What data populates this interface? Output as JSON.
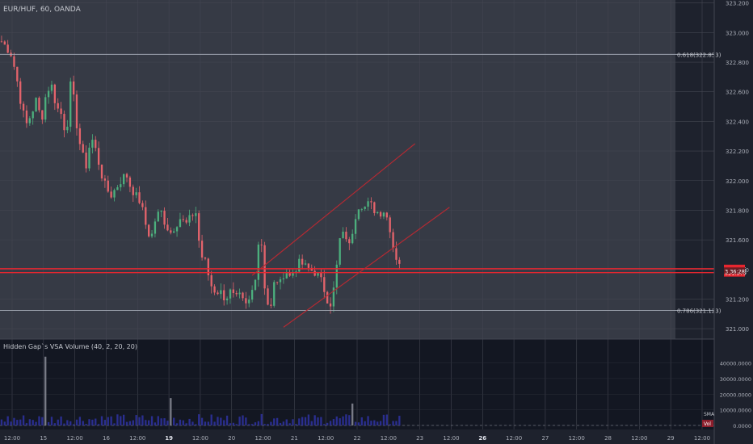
{
  "colors": {
    "main_bg": "#363a45",
    "future_bg": "#1e222d",
    "vol_bg": "#131722",
    "up": "#4caf7d",
    "down": "#e3636b",
    "vol_bar": "#2a2e8f",
    "line_red": "#e8262f",
    "line_gray": "#aab0bb",
    "channel": "#b22a33",
    "text": "#a9adb7"
  },
  "chart_data": {
    "type": "candlestick",
    "title": "EUR/HUF, 60, OANDA",
    "price_axis": {
      "ticks": [
        "323.200",
        "323.000",
        "322.800",
        "322.600",
        "322.400",
        "322.200",
        "322.000",
        "321.800",
        "321.600",
        "321.400",
        "321.200",
        "321.000"
      ],
      "range": [
        320.93,
        323.22
      ]
    },
    "time_axis": {
      "ticks": [
        "12:00",
        "15",
        "12:00",
        "16",
        "12:00",
        "19",
        "12:00",
        "20",
        "12:00",
        "21",
        "12:00",
        "22",
        "12:00",
        "23",
        "12:00",
        "26",
        "12:00",
        "27",
        "12:00",
        "28",
        "12:00",
        "29",
        "12:00"
      ],
      "bold_ticks": [
        "19",
        "26"
      ],
      "data_end_bar": 128,
      "total_bars": 228
    },
    "levels": [
      {
        "label": "0.618(322.853)",
        "value": 322.853,
        "color": "line_gray"
      },
      {
        "label": "0.786(321.123)",
        "value": 321.123,
        "color": "line_gray"
      },
      {
        "label": "321.405",
        "value": 321.405,
        "color": "line_red"
      },
      {
        "label": "321.379",
        "value": 321.379,
        "color": "line_red"
      }
    ],
    "price_tags": [
      {
        "label": "321.405",
        "value": 321.405
      },
      {
        "label": "321.379",
        "value": 321.379
      }
    ],
    "current_price_tag": {
      "label": "3 36:28",
      "value": 321.392
    },
    "channel_lines": [
      {
        "start": [
          80,
          321.36
        ],
        "end": [
          132,
          322.25
        ]
      },
      {
        "start": [
          90,
          321.01
        ],
        "end": [
          143,
          321.82
        ]
      }
    ],
    "ohlc_anchors": [
      322.94,
      322.9,
      322.85,
      322.7,
      322.5,
      322.38,
      322.45,
      322.55,
      322.4,
      322.6,
      322.65,
      322.5,
      322.45,
      322.3,
      322.7,
      322.4,
      322.2,
      322.1,
      322.3,
      322.2,
      322.05,
      321.95,
      321.9,
      321.95,
      322.0,
      322.05,
      321.95,
      321.9,
      321.85,
      321.7,
      321.6,
      321.75,
      321.8,
      321.7,
      321.65,
      321.7,
      321.75,
      321.7,
      321.75,
      321.8,
      321.5,
      321.45,
      321.3,
      321.25,
      321.25,
      321.2,
      321.25,
      321.2,
      321.22,
      321.15,
      321.2,
      321.35,
      321.7,
      321.25,
      321.1,
      321.35,
      321.3,
      321.4,
      321.35,
      321.4,
      321.45,
      321.42,
      321.4,
      321.38,
      321.35,
      321.25,
      321.15,
      321.3,
      321.6,
      321.65,
      321.55,
      321.75,
      321.85,
      321.82,
      321.85,
      321.8,
      321.78,
      321.8,
      321.7,
      321.5,
      321.45
    ],
    "vol_axis": {
      "ticks": [
        "40000.0000",
        "30000.0000",
        "20000.0000",
        "10000.0000",
        "0.0000"
      ],
      "max": 47000
    },
    "indicator_label": "Hidden Gap`s VSA Volume (40, 2, 20, 20)",
    "sma_label": "SMA",
    "vol_label": "Vol",
    "spikes": [
      {
        "bar": 14,
        "value": 44000
      },
      {
        "bar": 54,
        "value": 17500
      },
      {
        "bar": 112,
        "value": 14000
      }
    ]
  }
}
